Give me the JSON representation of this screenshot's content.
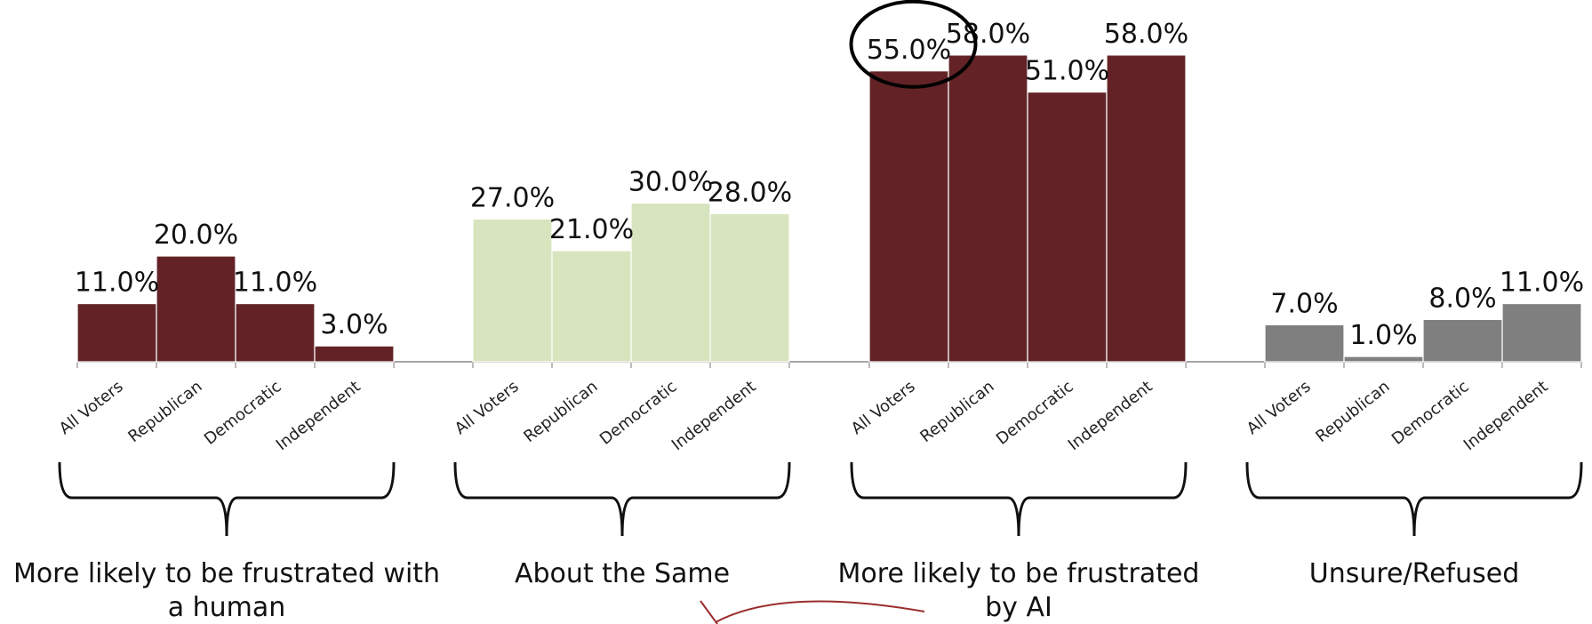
{
  "chart_data": {
    "type": "bar",
    "ylim": [
      0,
      70
    ],
    "grid": false,
    "legend": "none",
    "categories": [
      "All Voters",
      "Republican",
      "Democratic",
      "Independent"
    ],
    "groups": [
      {
        "label_lines": [
          "More likely to be frustrated with",
          "a human"
        ],
        "color": "#632326",
        "values": [
          11.0,
          20.0,
          11.0,
          3.0
        ],
        "value_labels": [
          "11.0%",
          "20.0%",
          "11.0%",
          "3.0%"
        ]
      },
      {
        "label_lines": [
          "About the  Same"
        ],
        "color": "#D7E4BD",
        "values": [
          27.0,
          21.0,
          30.0,
          28.0
        ],
        "value_labels": [
          "27.0%",
          "21.0%",
          "30.0%",
          "28.0%"
        ]
      },
      {
        "label_lines": [
          "More likely to be frustrated",
          "by AI"
        ],
        "color": "#632326",
        "values": [
          55.0,
          58.0,
          51.0,
          58.0
        ],
        "value_labels": [
          "55.0%",
          "58.0%",
          "51.0%",
          "58.0%"
        ]
      },
      {
        "label_lines": [
          "Unsure/Refused"
        ],
        "color": "#7F7F7F",
        "values": [
          7.0,
          1.0,
          8.0,
          11.0
        ],
        "value_labels": [
          "7.0%",
          "1.0%",
          "8.0%",
          "11.0%"
        ]
      }
    ],
    "annotations": [
      {
        "type": "ellipse-highlight",
        "group": 2,
        "bar": 0,
        "color": "#000000"
      },
      {
        "type": "curved-arrow",
        "color": "#9B2D2D"
      }
    ]
  }
}
